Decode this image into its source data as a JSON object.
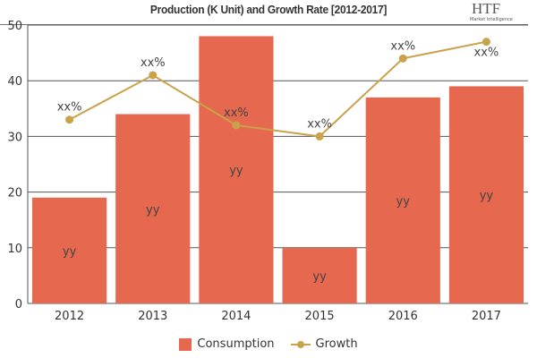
{
  "chart_data": {
    "type": "bar+line",
    "title": "Production (K Unit) and Growth Rate [2012-2017]",
    "categories": [
      "2012",
      "2013",
      "2014",
      "2015",
      "2016",
      "2017"
    ],
    "series": [
      {
        "name": "Consumption",
        "type": "bar",
        "values": [
          19,
          34,
          48,
          10,
          37,
          39
        ],
        "labels": [
          "yy",
          "yy",
          "yy",
          "yy",
          "yy",
          "yy"
        ],
        "color": "#e5684f"
      },
      {
        "name": "Growth",
        "type": "line",
        "values": [
          33,
          41,
          32,
          30,
          44,
          47
        ],
        "labels": [
          "xx%",
          "xx%",
          "xx%",
          "xx%",
          "xx%",
          "xx%"
        ],
        "color": "#c9a24a"
      }
    ],
    "ylim": [
      0,
      50
    ],
    "yticks": [
      0,
      10,
      20,
      30,
      40,
      50
    ],
    "grid": true,
    "legend": "bottom"
  },
  "logo": {
    "text": "HTF",
    "subtext": "Market Intelligence"
  }
}
